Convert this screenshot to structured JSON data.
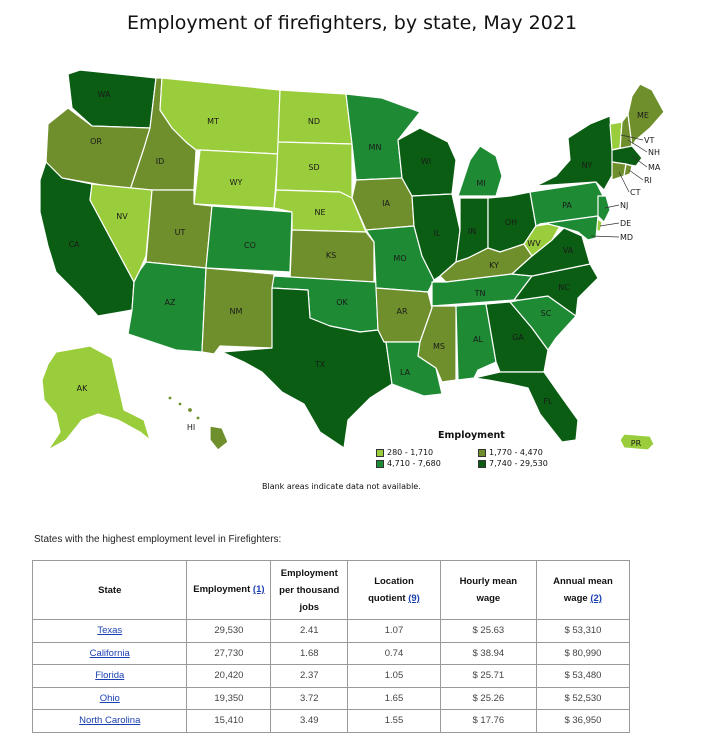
{
  "title": "Employment of firefighters, by state, May 2021",
  "legend": {
    "title": "Employment",
    "items": [
      {
        "label": "280 - 1,710",
        "color": "#9acd3c"
      },
      {
        "label": "1,770 - 4,470",
        "color": "#6f8f2c"
      },
      {
        "label": "4,710 - 7,680",
        "color": "#1f8a34"
      },
      {
        "label": "7,740 - 29,530",
        "color": "#0a5d12"
      }
    ]
  },
  "note": "Blank areas indicate data not available.",
  "states": {
    "WA": {
      "label": "WA",
      "color": "#0a5d12"
    },
    "OR": {
      "label": "OR",
      "color": "#6f8f2c"
    },
    "CA": {
      "label": "CA",
      "color": "#0a5d12"
    },
    "ID": {
      "label": "ID",
      "color": "#6f8f2c"
    },
    "NV": {
      "label": "NV",
      "color": "#9acd3c"
    },
    "MT": {
      "label": "MT",
      "color": "#9acd3c"
    },
    "WY": {
      "label": "WY",
      "color": "#9acd3c"
    },
    "UT": {
      "label": "UT",
      "color": "#6f8f2c"
    },
    "AZ": {
      "label": "AZ",
      "color": "#1f8a34"
    },
    "CO": {
      "label": "CO",
      "color": "#1f8a34"
    },
    "NM": {
      "label": "NM",
      "color": "#6f8f2c"
    },
    "ND": {
      "label": "ND",
      "color": "#9acd3c"
    },
    "SD": {
      "label": "SD",
      "color": "#9acd3c"
    },
    "NE": {
      "label": "NE",
      "color": "#9acd3c"
    },
    "KS": {
      "label": "KS",
      "color": "#6f8f2c"
    },
    "OK": {
      "label": "OK",
      "color": "#1f8a34"
    },
    "TX": {
      "label": "TX",
      "color": "#0a5d12"
    },
    "MN": {
      "label": "MN",
      "color": "#1f8a34"
    },
    "IA": {
      "label": "IA",
      "color": "#6f8f2c"
    },
    "MO": {
      "label": "MO",
      "color": "#1f8a34"
    },
    "AR": {
      "label": "AR",
      "color": "#6f8f2c"
    },
    "LA": {
      "label": "LA",
      "color": "#1f8a34"
    },
    "WI": {
      "label": "WI",
      "color": "#0a5d12"
    },
    "IL": {
      "label": "IL",
      "color": "#0a5d12"
    },
    "MI": {
      "label": "MI",
      "color": "#1f8a34"
    },
    "IN": {
      "label": "IN",
      "color": "#0a5d12"
    },
    "OH": {
      "label": "OH",
      "color": "#0a5d12"
    },
    "KY": {
      "label": "KY",
      "color": "#6f8f2c"
    },
    "TN": {
      "label": "TN",
      "color": "#1f8a34"
    },
    "MS": {
      "label": "MS",
      "color": "#6f8f2c"
    },
    "AL": {
      "label": "AL",
      "color": "#1f8a34"
    },
    "GA": {
      "label": "GA",
      "color": "#0a5d12"
    },
    "FL": {
      "label": "FL",
      "color": "#0a5d12"
    },
    "SC": {
      "label": "SC",
      "color": "#1f8a34"
    },
    "NC": {
      "label": "NC",
      "color": "#0a5d12"
    },
    "VA": {
      "label": "VA",
      "color": "#0a5d12"
    },
    "WV": {
      "label": "WV",
      "color": "#9acd3c"
    },
    "PA": {
      "label": "PA",
      "color": "#1f8a34"
    },
    "NY": {
      "label": "NY",
      "color": "#0a5d12"
    },
    "VT": {
      "label": "VT",
      "color": "#9acd3c"
    },
    "NH": {
      "label": "NH",
      "color": "#6f8f2c"
    },
    "ME": {
      "label": "ME",
      "color": "#6f8f2c"
    },
    "MA": {
      "label": "MA",
      "color": "#0a5d12"
    },
    "RI": {
      "label": "RI",
      "color": "#6f8f2c"
    },
    "CT": {
      "label": "CT",
      "color": "#6f8f2c"
    },
    "NJ": {
      "label": "NJ",
      "color": "#1f8a34"
    },
    "DE": {
      "label": "DE",
      "color": "#9acd3c"
    },
    "MD": {
      "label": "MD",
      "color": "#1f8a34"
    },
    "AK": {
      "label": "AK",
      "color": "#9acd3c"
    },
    "HI": {
      "label": "HI",
      "color": "#6f8f2c"
    },
    "PR": {
      "label": "PR",
      "color": "#9acd3c"
    }
  },
  "table": {
    "caption": "States with the highest employment level in Firefighters:",
    "headers": {
      "state": "State",
      "employment": "Employment",
      "employment_ref": "(1)",
      "per_thousand": "Employment per thousand jobs",
      "lq": "Location quotient",
      "lq_ref": "(9)",
      "hourly": "Hourly mean wage",
      "annual": "Annual mean wage",
      "annual_ref": "(2)"
    },
    "rows": [
      {
        "state": "Texas",
        "employment": "29,530",
        "per_thousand": "2.41",
        "lq": "1.07",
        "hourly": "$ 25.63",
        "annual": "$ 53,310"
      },
      {
        "state": "California",
        "employment": "27,730",
        "per_thousand": "1.68",
        "lq": "0.74",
        "hourly": "$ 38.94",
        "annual": "$ 80,990"
      },
      {
        "state": "Florida",
        "employment": "20,420",
        "per_thousand": "2.37",
        "lq": "1.05",
        "hourly": "$ 25.71",
        "annual": "$ 53,480"
      },
      {
        "state": "Ohio",
        "employment": "19,350",
        "per_thousand": "3.72",
        "lq": "1.65",
        "hourly": "$ 25.26",
        "annual": "$ 52,530"
      },
      {
        "state": "North Carolina",
        "employment": "15,410",
        "per_thousand": "3.49",
        "lq": "1.55",
        "hourly": "$ 17.76",
        "annual": "$ 36,950"
      }
    ]
  }
}
